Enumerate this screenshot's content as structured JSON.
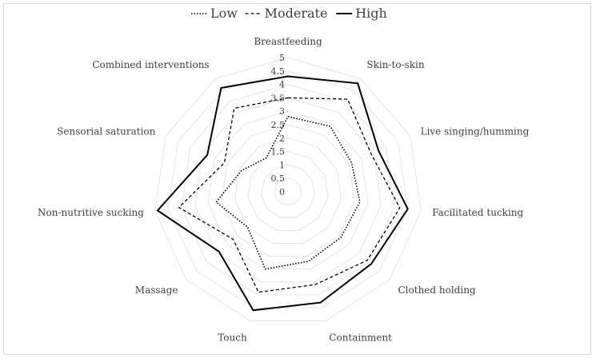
{
  "chart_data": {
    "type": "radar",
    "title": "",
    "categories": [
      "Breastfeeding",
      "Skin-to-skin",
      "Live singing/humming",
      "Facilitated tucking",
      "Clothed holding",
      "Containment",
      "Touch",
      "Massage",
      "Non-nutritive sucking",
      "Sensorial saturation",
      "Combined interventions"
    ],
    "r_ticks": [
      "0",
      "0.5",
      "1",
      "1.5",
      "2",
      "2.5",
      "3",
      "3.5",
      "4",
      "4.5",
      "5"
    ],
    "r_range": [
      0,
      5
    ],
    "grid": true,
    "legend_position": "top",
    "series": [
      {
        "name": "Low",
        "line_style": "dotted",
        "color": "#000000",
        "values": [
          2.8,
          2.9,
          2.6,
          2.7,
          2.6,
          2.7,
          3.0,
          2.0,
          2.7,
          1.9,
          1.5
        ]
      },
      {
        "name": "Moderate",
        "line_style": "dashed",
        "color": "#000000",
        "values": [
          3.5,
          4.1,
          3.4,
          4.2,
          3.9,
          3.6,
          3.9,
          2.7,
          4.1,
          2.6,
          3.7
        ]
      },
      {
        "name": "High",
        "line_style": "solid",
        "color": "#000000",
        "values": [
          4.3,
          4.8,
          3.7,
          4.5,
          4.1,
          4.3,
          4.6,
          3.4,
          4.9,
          3.3,
          4.6
        ]
      }
    ]
  }
}
